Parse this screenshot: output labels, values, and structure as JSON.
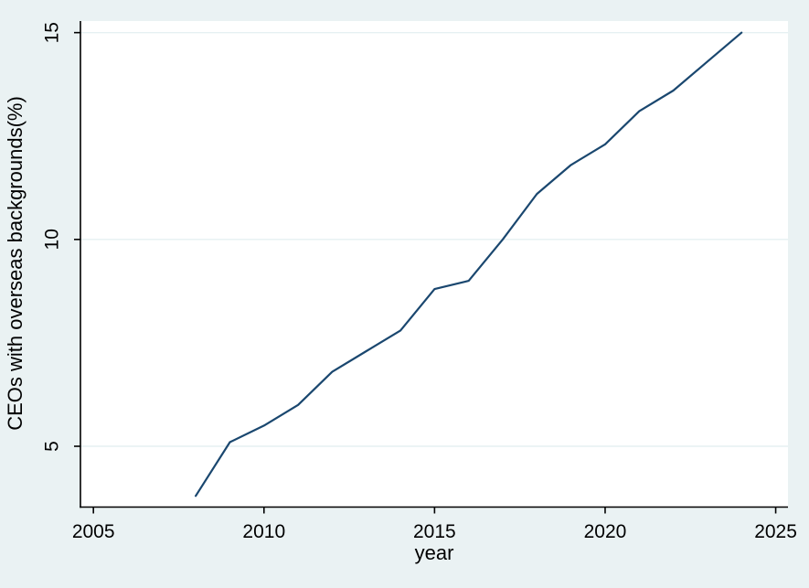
{
  "chart": {
    "background_color": "#eaf2f3",
    "plot_background_color": "#ffffff",
    "grid_color": "#e6f0f2",
    "axis_color": "#000000",
    "text_color": "#000000"
  },
  "chart_data": {
    "type": "line",
    "title": "",
    "xlabel": "year",
    "ylabel": "CEOs with overseas backgrounds(%)",
    "legend": "none",
    "grid": "horizontal-only",
    "line_color": "#1a476f",
    "x": [
      2008,
      2009,
      2010,
      2011,
      2012,
      2013,
      2014,
      2015,
      2016,
      2017,
      2018,
      2019,
      2020,
      2021,
      2022,
      2023,
      2024
    ],
    "values": [
      3.8,
      5.1,
      5.5,
      6.0,
      6.8,
      7.3,
      7.8,
      8.8,
      9.0,
      10.0,
      11.1,
      11.8,
      12.3,
      13.1,
      13.6,
      14.3,
      15.0
    ],
    "x_ticks": [
      2005,
      2010,
      2015,
      2020,
      2025
    ],
    "x_tick_labels": [
      "2005",
      "2010",
      "2015",
      "2020",
      "2025"
    ],
    "y_ticks": [
      5,
      10,
      15
    ],
    "y_tick_labels": [
      "5",
      "10",
      "15"
    ],
    "xlim": [
      2004.62,
      2025.36
    ],
    "ylim": [
      3.53,
      15.28
    ]
  }
}
